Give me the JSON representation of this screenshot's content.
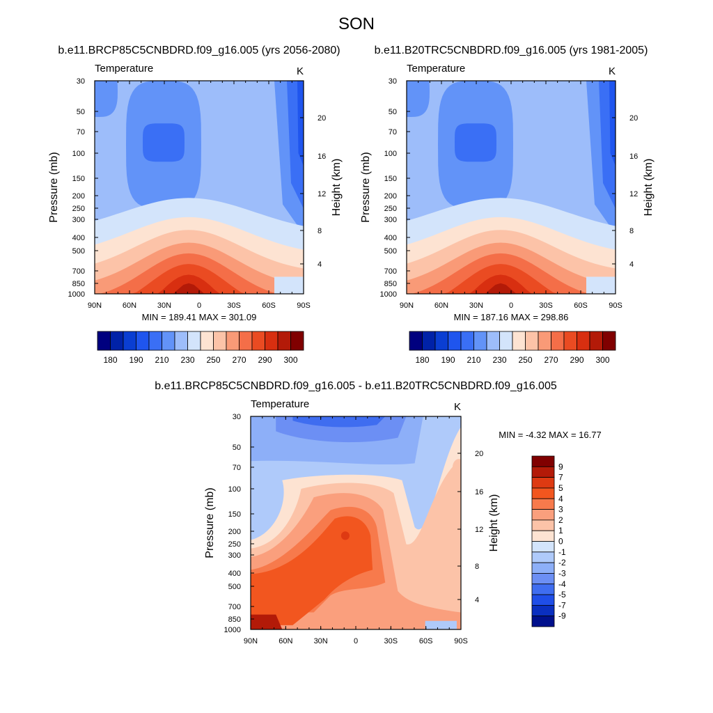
{
  "figure_title": "SON",
  "chart_data": [
    {
      "type": "contour",
      "id": "future",
      "title": "b.e11.BRCP85C5CNBDRD.f09_g16.005 (yrs 2056-2080)",
      "left_label": "Temperature",
      "units": "K",
      "ylabel": "Pressure (mb)",
      "ylabel_right": "Height (km)",
      "xticks": [
        "90N",
        "60N",
        "30N",
        "0",
        "30S",
        "60S",
        "90S"
      ],
      "pressure_ticks": [
        "30",
        "50",
        "70",
        "100",
        "150",
        "200",
        "250",
        "300",
        "400",
        "500",
        "700",
        "850",
        "1000"
      ],
      "height_ticks": [
        "20",
        "16",
        "12",
        "8",
        "4"
      ],
      "stats": "MIN = 189.41  MAX = 301.09",
      "colorbar": {
        "orientation": "horizontal",
        "colors": [
          "#00007f",
          "#0022a8",
          "#0a3ed2",
          "#1f55ee",
          "#3a6ff5",
          "#6293f8",
          "#9dbdfa",
          "#d3e4fb",
          "#fde3d2",
          "#fcc3a8",
          "#f99a77",
          "#f46e48",
          "#ea4b22",
          "#d82f10",
          "#b31a08",
          "#800000"
        ],
        "labels": [
          "180",
          "190",
          "210",
          "230",
          "250",
          "270",
          "290",
          "300"
        ]
      },
      "range": [
        189.41,
        301.09
      ]
    },
    {
      "type": "contour",
      "id": "historical",
      "title": "b.e11.B20TRC5CNBDRD.f09_g16.005 (yrs 1981-2005)",
      "left_label": "Temperature",
      "units": "K",
      "ylabel": "Pressure (mb)",
      "ylabel_right": "Height (km)",
      "xticks": [
        "90N",
        "60N",
        "30N",
        "0",
        "30S",
        "60S",
        "90S"
      ],
      "pressure_ticks": [
        "30",
        "50",
        "70",
        "100",
        "150",
        "200",
        "250",
        "300",
        "400",
        "500",
        "700",
        "850",
        "1000"
      ],
      "height_ticks": [
        "20",
        "16",
        "12",
        "8",
        "4"
      ],
      "stats": "MIN = 187.16  MAX = 298.86",
      "colorbar": {
        "orientation": "horizontal",
        "colors": [
          "#00007f",
          "#0022a8",
          "#0a3ed2",
          "#1f55ee",
          "#3a6ff5",
          "#6293f8",
          "#9dbdfa",
          "#d3e4fb",
          "#fde3d2",
          "#fcc3a8",
          "#f99a77",
          "#f46e48",
          "#ea4b22",
          "#d82f10",
          "#b31a08",
          "#800000"
        ],
        "labels": [
          "180",
          "190",
          "210",
          "230",
          "250",
          "270",
          "290",
          "300"
        ]
      },
      "range": [
        187.16,
        298.86
      ]
    },
    {
      "type": "contour",
      "id": "difference",
      "title": "b.e11.BRCP85C5CNBDRD.f09_g16.005 - b.e11.B20TRC5CNBDRD.f09_g16.005",
      "left_label": "Temperature",
      "units": "K",
      "ylabel": "Pressure (mb)",
      "ylabel_right": "Height (km)",
      "xticks": [
        "90N",
        "60N",
        "30N",
        "0",
        "30S",
        "60S",
        "90S"
      ],
      "pressure_ticks": [
        "30",
        "50",
        "70",
        "100",
        "150",
        "200",
        "250",
        "300",
        "400",
        "500",
        "700",
        "850",
        "1000"
      ],
      "height_ticks": [
        "20",
        "16",
        "12",
        "8",
        "4"
      ],
      "stats": "MIN =  -4.32  MAX =  16.77",
      "colorbar": {
        "orientation": "vertical",
        "colors": [
          "#800000",
          "#b31a08",
          "#de3a12",
          "#f2561f",
          "#f77a4c",
          "#fa9f7d",
          "#fcc3a8",
          "#fde3d2",
          "#d3e4fb",
          "#afcafa",
          "#8daff8",
          "#6c8ff4",
          "#3f6df0",
          "#1f4ee8",
          "#0a2fc0",
          "#00108c"
        ],
        "labels": [
          "9",
          "7",
          "5",
          "4",
          "3",
          "2",
          "1",
          "0",
          "-1",
          "-2",
          "-3",
          "-4",
          "-5",
          "-7",
          "-9"
        ]
      },
      "range": [
        -4.32,
        16.77
      ]
    }
  ]
}
